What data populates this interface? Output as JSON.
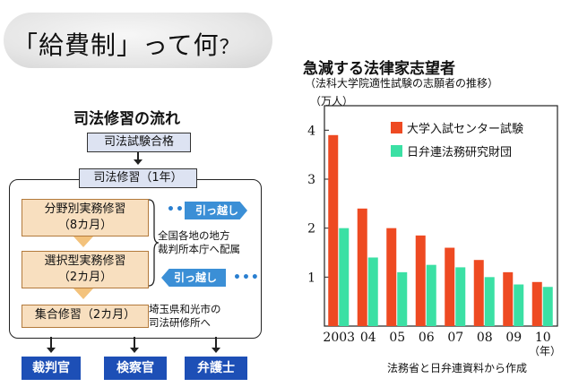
{
  "header": {
    "title_main": "「給費制」って何",
    "title_mark": "？"
  },
  "flow": {
    "heading": "司法修習の流れ",
    "exam_pass": "司法試験合格",
    "training_year": "司法修習（1年）",
    "stage1_line1": "分野別実務修習",
    "stage1_line2": "（8カ月）",
    "stage2_line1": "選択型実務修習",
    "stage2_line2": "（2カ月）",
    "stage3": "集合修習（2カ月）",
    "note1_line1": "全国各地の地方",
    "note1_line2": "裁判所本庁へ配属",
    "note2_line1": "埼玉県和光市の",
    "note2_line2": "司法研修所へ",
    "move_tag1": "引っ越し",
    "move_tag2": "引っ越し",
    "dots1": "•••",
    "dots2": "•••",
    "careers": [
      "裁判官",
      "検察官",
      "弁護士"
    ]
  },
  "chart_header": {
    "title": "急減する法律家志望者",
    "subtitle": "（法科大学院適性試験の志願者の推移）",
    "unit": "（万人）",
    "source": "法務省と日弁連資料から作成"
  },
  "chart_data": {
    "type": "bar",
    "title": "急減する法律家志望者",
    "categories": [
      "2003",
      "04",
      "05",
      "06",
      "07",
      "08",
      "09",
      "10"
    ],
    "xlabel": "（年）",
    "ylabel": "（万人）",
    "ylim": [
      0,
      4.5
    ],
    "yticks": [
      1,
      2,
      3,
      4
    ],
    "legend_position": "top-right",
    "series": [
      {
        "name": "大学入試センター試験",
        "color": "#ee4a22",
        "values": [
          3.9,
          2.4,
          2.0,
          1.85,
          1.6,
          1.35,
          1.1,
          0.9
        ]
      },
      {
        "name": "日弁連法務研究財団",
        "color": "#3be0a4",
        "values": [
          2.0,
          1.4,
          1.1,
          1.25,
          1.2,
          1.0,
          0.85,
          0.8
        ]
      }
    ]
  },
  "colors": {
    "career_blue": "#1d4fb6",
    "tag_blue": "#3b8fd6",
    "stage_fill": "#f8dfbf"
  }
}
